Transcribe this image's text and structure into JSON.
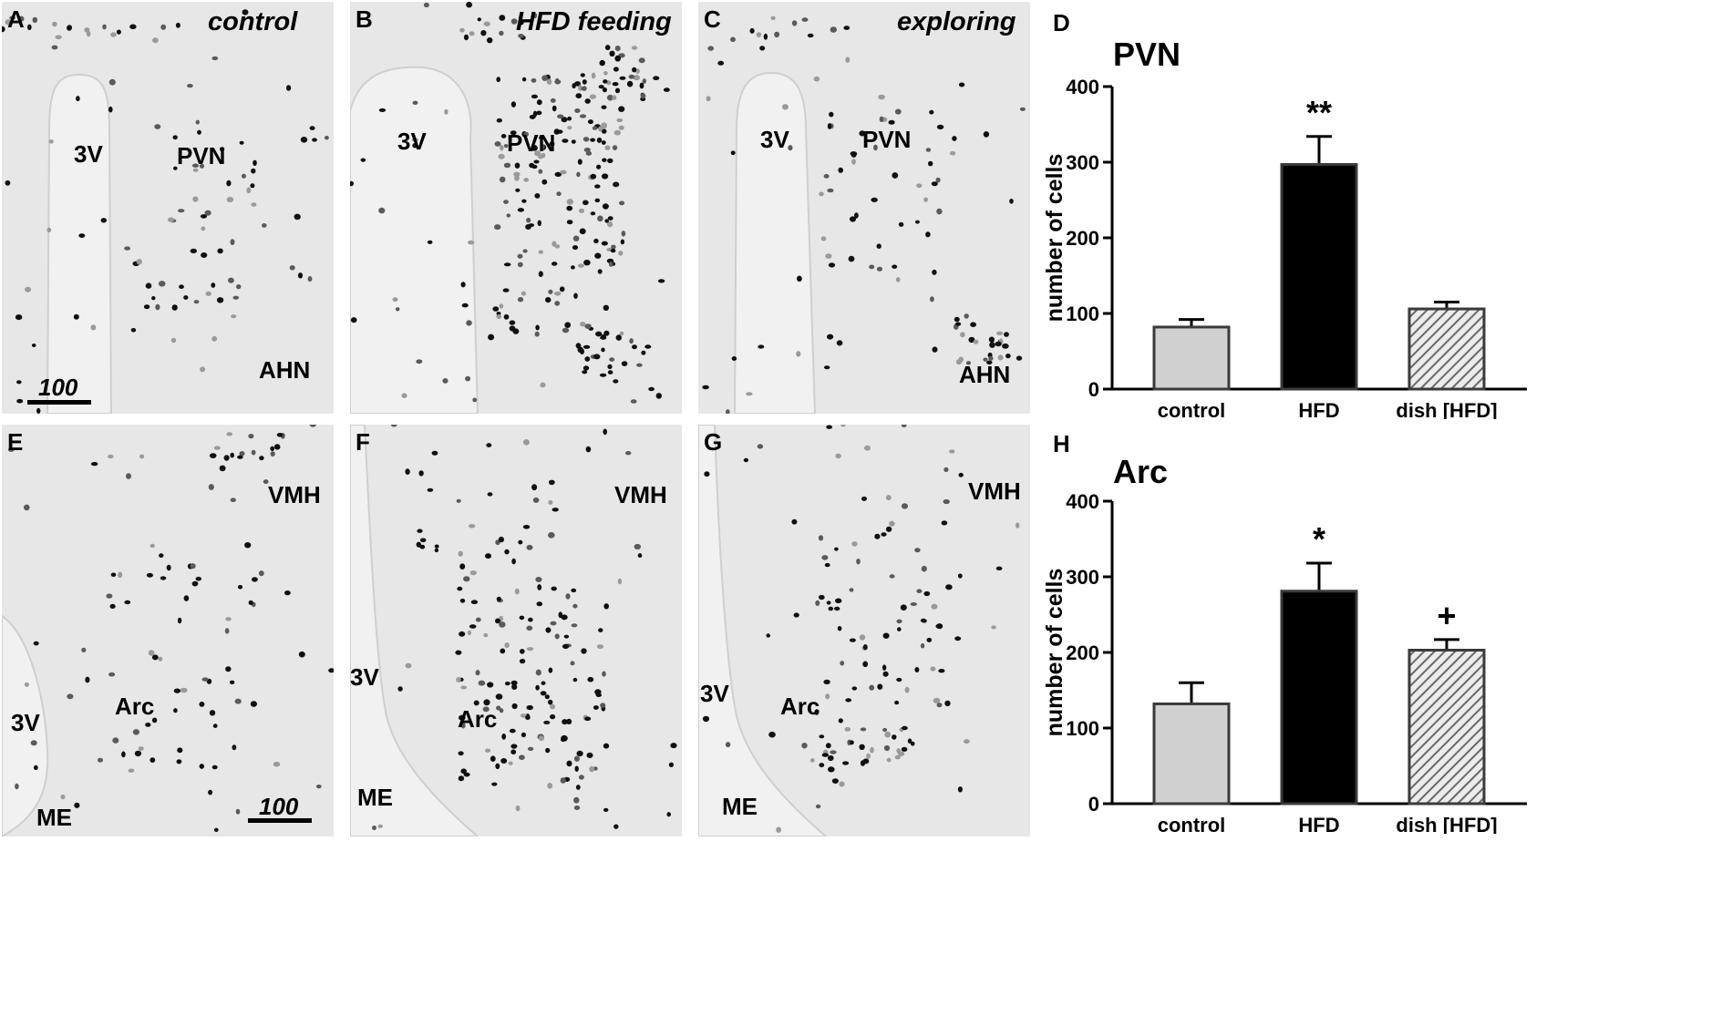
{
  "panels": [
    {
      "letter": "A",
      "condition": "control",
      "labels": [
        "3V",
        "PVN",
        "AHN"
      ],
      "scale": "100"
    },
    {
      "letter": "B",
      "condition": "HFD feeding",
      "labels": [
        "3V",
        "PVN"
      ]
    },
    {
      "letter": "C",
      "condition": "exploring",
      "labels": [
        "3V",
        "PVN",
        "AHN"
      ]
    },
    {
      "letter": "E",
      "labels": [
        "VMH",
        "Arc",
        "3V",
        "ME"
      ],
      "scale": "100"
    },
    {
      "letter": "F",
      "labels": [
        "VMH",
        "3V",
        "Arc",
        "ME"
      ]
    },
    {
      "letter": "G",
      "labels": [
        "VMH",
        "3V",
        "Arc",
        "ME"
      ]
    }
  ],
  "colors": {
    "tissue": "#e7e7e7",
    "ventricle": "#f1f1f1",
    "control_bar": "#d0d0d0",
    "hfd_bar": "#000000",
    "dish_bar": "#a6a6a6",
    "cells": "#111111"
  },
  "chart_data": [
    {
      "type": "bar",
      "panel_letter": "D",
      "title": "PVN",
      "ylabel": "number of cells",
      "categories": [
        "control",
        "HFD",
        "dish [HFD]"
      ],
      "values": [
        82,
        297,
        106
      ],
      "errors": [
        10,
        37,
        9
      ],
      "ylim": [
        0,
        400
      ],
      "yticks": [
        "0",
        "100",
        "200",
        "300",
        "400"
      ],
      "annotations": [
        "",
        "**",
        ""
      ]
    },
    {
      "type": "bar",
      "panel_letter": "H",
      "title": "Arc",
      "ylabel": "number of cells",
      "categories": [
        "control",
        "HFD",
        "dish [HFD]"
      ],
      "values": [
        132,
        281,
        203
      ],
      "errors": [
        28,
        37,
        14
      ],
      "ylim": [
        0,
        400
      ],
      "yticks": [
        "0",
        "100",
        "200",
        "300",
        "400"
      ],
      "annotations": [
        "",
        "*",
        "+"
      ]
    }
  ]
}
